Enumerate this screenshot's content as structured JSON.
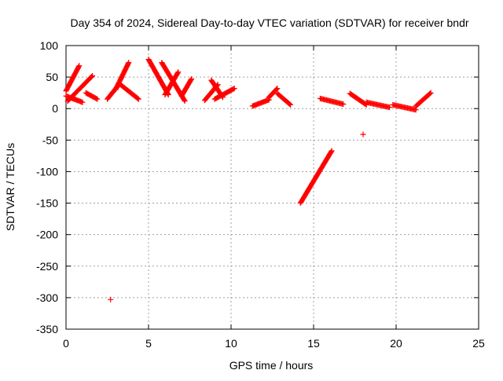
{
  "chart_data": {
    "type": "scatter",
    "title": "Day 354 of 2024, Sidereal Day-to-day VTEC variation (SDTVAR) for receiver bndr",
    "xlabel": "GPS time / hours",
    "ylabel": "SDTVAR / TECUs",
    "xlim": [
      0,
      25
    ],
    "ylim": [
      -350,
      100
    ],
    "xticks": [
      0,
      5,
      10,
      15,
      20,
      25
    ],
    "yticks": [
      100,
      50,
      0,
      -50,
      -100,
      -150,
      -200,
      -250,
      -300,
      -350
    ],
    "grid": true,
    "marker": "plus",
    "color": "#ff0000",
    "series": [
      {
        "segments": [
          {
            "x0": 0.0,
            "y0": 28,
            "x1": 0.8,
            "y1": 68
          },
          {
            "x0": 0.0,
            "y0": 20,
            "x1": 1.0,
            "y1": 10
          },
          {
            "x0": 0.1,
            "y0": 12,
            "x1": 1.6,
            "y1": 52
          },
          {
            "x0": 1.2,
            "y0": 25,
            "x1": 1.9,
            "y1": 15
          },
          {
            "x0": 2.5,
            "y0": 15,
            "x1": 3.2,
            "y1": 38
          },
          {
            "x0": 3.0,
            "y0": 30,
            "x1": 3.8,
            "y1": 73
          },
          {
            "x0": 3.3,
            "y0": 38,
            "x1": 4.4,
            "y1": 15
          },
          {
            "x0": 5.0,
            "y0": 78,
            "x1": 6.2,
            "y1": 22
          },
          {
            "x0": 5.8,
            "y0": 73,
            "x1": 7.2,
            "y1": 12
          },
          {
            "x0": 6.0,
            "y0": 22,
            "x1": 6.8,
            "y1": 58
          },
          {
            "x0": 7.0,
            "y0": 20,
            "x1": 7.6,
            "y1": 47
          },
          {
            "x0": 8.4,
            "y0": 13,
            "x1": 9.2,
            "y1": 38
          },
          {
            "x0": 8.8,
            "y0": 45,
            "x1": 9.5,
            "y1": 18
          },
          {
            "x0": 9.0,
            "y0": 15,
            "x1": 10.2,
            "y1": 32
          },
          {
            "x0": 11.3,
            "y0": 4,
            "x1": 12.3,
            "y1": 14
          },
          {
            "x0": 12.3,
            "y0": 18,
            "x1": 12.8,
            "y1": 32
          },
          {
            "x0": 12.8,
            "y0": 24,
            "x1": 13.6,
            "y1": 6
          },
          {
            "x0": 15.4,
            "y0": 16,
            "x1": 16.8,
            "y1": 7
          },
          {
            "x0": 17.2,
            "y0": 24,
            "x1": 18.2,
            "y1": 6
          },
          {
            "x0": 18.2,
            "y0": 10,
            "x1": 19.6,
            "y1": 2
          },
          {
            "x0": 19.8,
            "y0": 6,
            "x1": 21.2,
            "y1": -2
          },
          {
            "x0": 21.2,
            "y0": 4,
            "x1": 22.1,
            "y1": 25
          },
          {
            "x0": 14.2,
            "y0": -150,
            "x1": 16.1,
            "y1": -67
          }
        ],
        "points": [
          {
            "x": 18.0,
            "y": -41
          },
          {
            "x": 2.7,
            "y": -303
          }
        ]
      }
    ]
  }
}
